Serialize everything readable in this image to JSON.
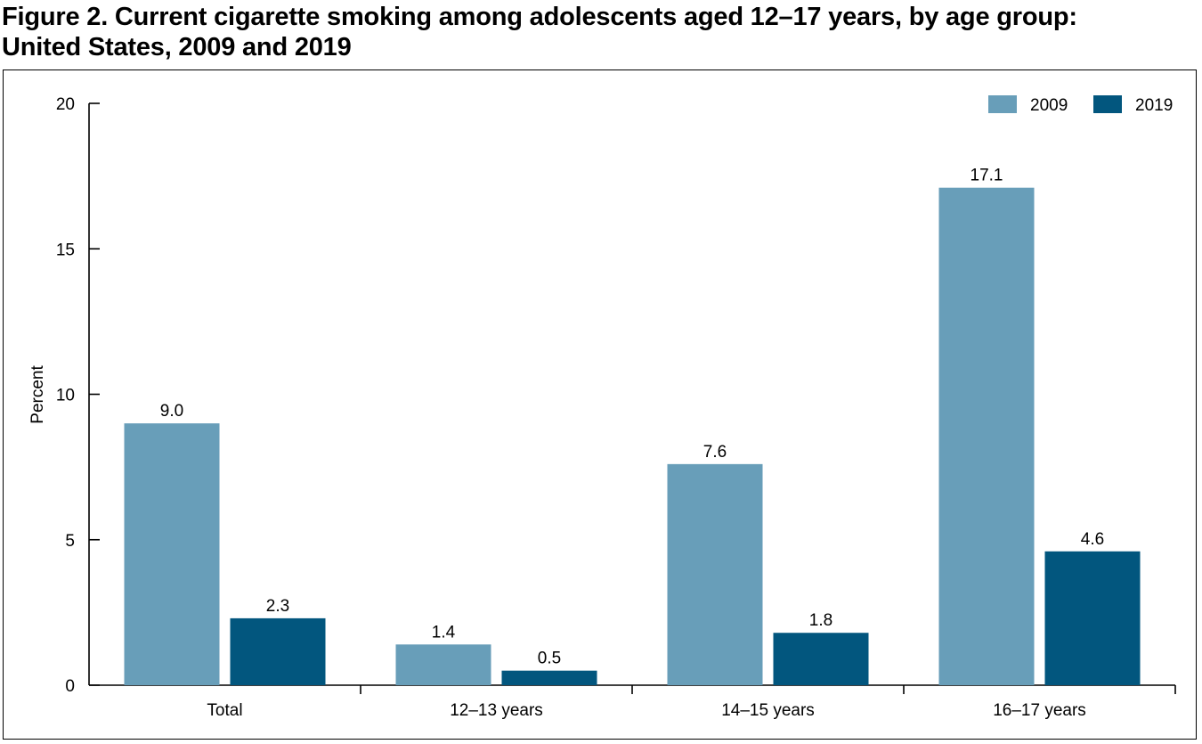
{
  "title_line1": "Figure 2. Current cigarette smoking among adolescents aged 12–17 years, by age group:",
  "title_line2": "United States, 2009 and 2019",
  "chart_data": {
    "type": "bar",
    "categories": [
      "Total",
      "12–13 years",
      "14–15 years",
      "16–17 years"
    ],
    "series": [
      {
        "name": "2009",
        "values": [
          9.0,
          1.4,
          7.6,
          17.1
        ],
        "labels": [
          "9.0",
          "1.4",
          "7.6",
          "17.1"
        ],
        "color": "#689eb9"
      },
      {
        "name": "2019",
        "values": [
          2.3,
          0.5,
          1.8,
          4.6
        ],
        "labels": [
          "2.3",
          "0.5",
          "1.8",
          "4.6"
        ],
        "color": "#02567e"
      }
    ],
    "ylabel": "Percent",
    "xlabel": "",
    "ylim": [
      0,
      20
    ],
    "yticks": [
      0,
      5,
      10,
      15,
      20
    ],
    "grid": false,
    "legend_position": "top-right"
  }
}
